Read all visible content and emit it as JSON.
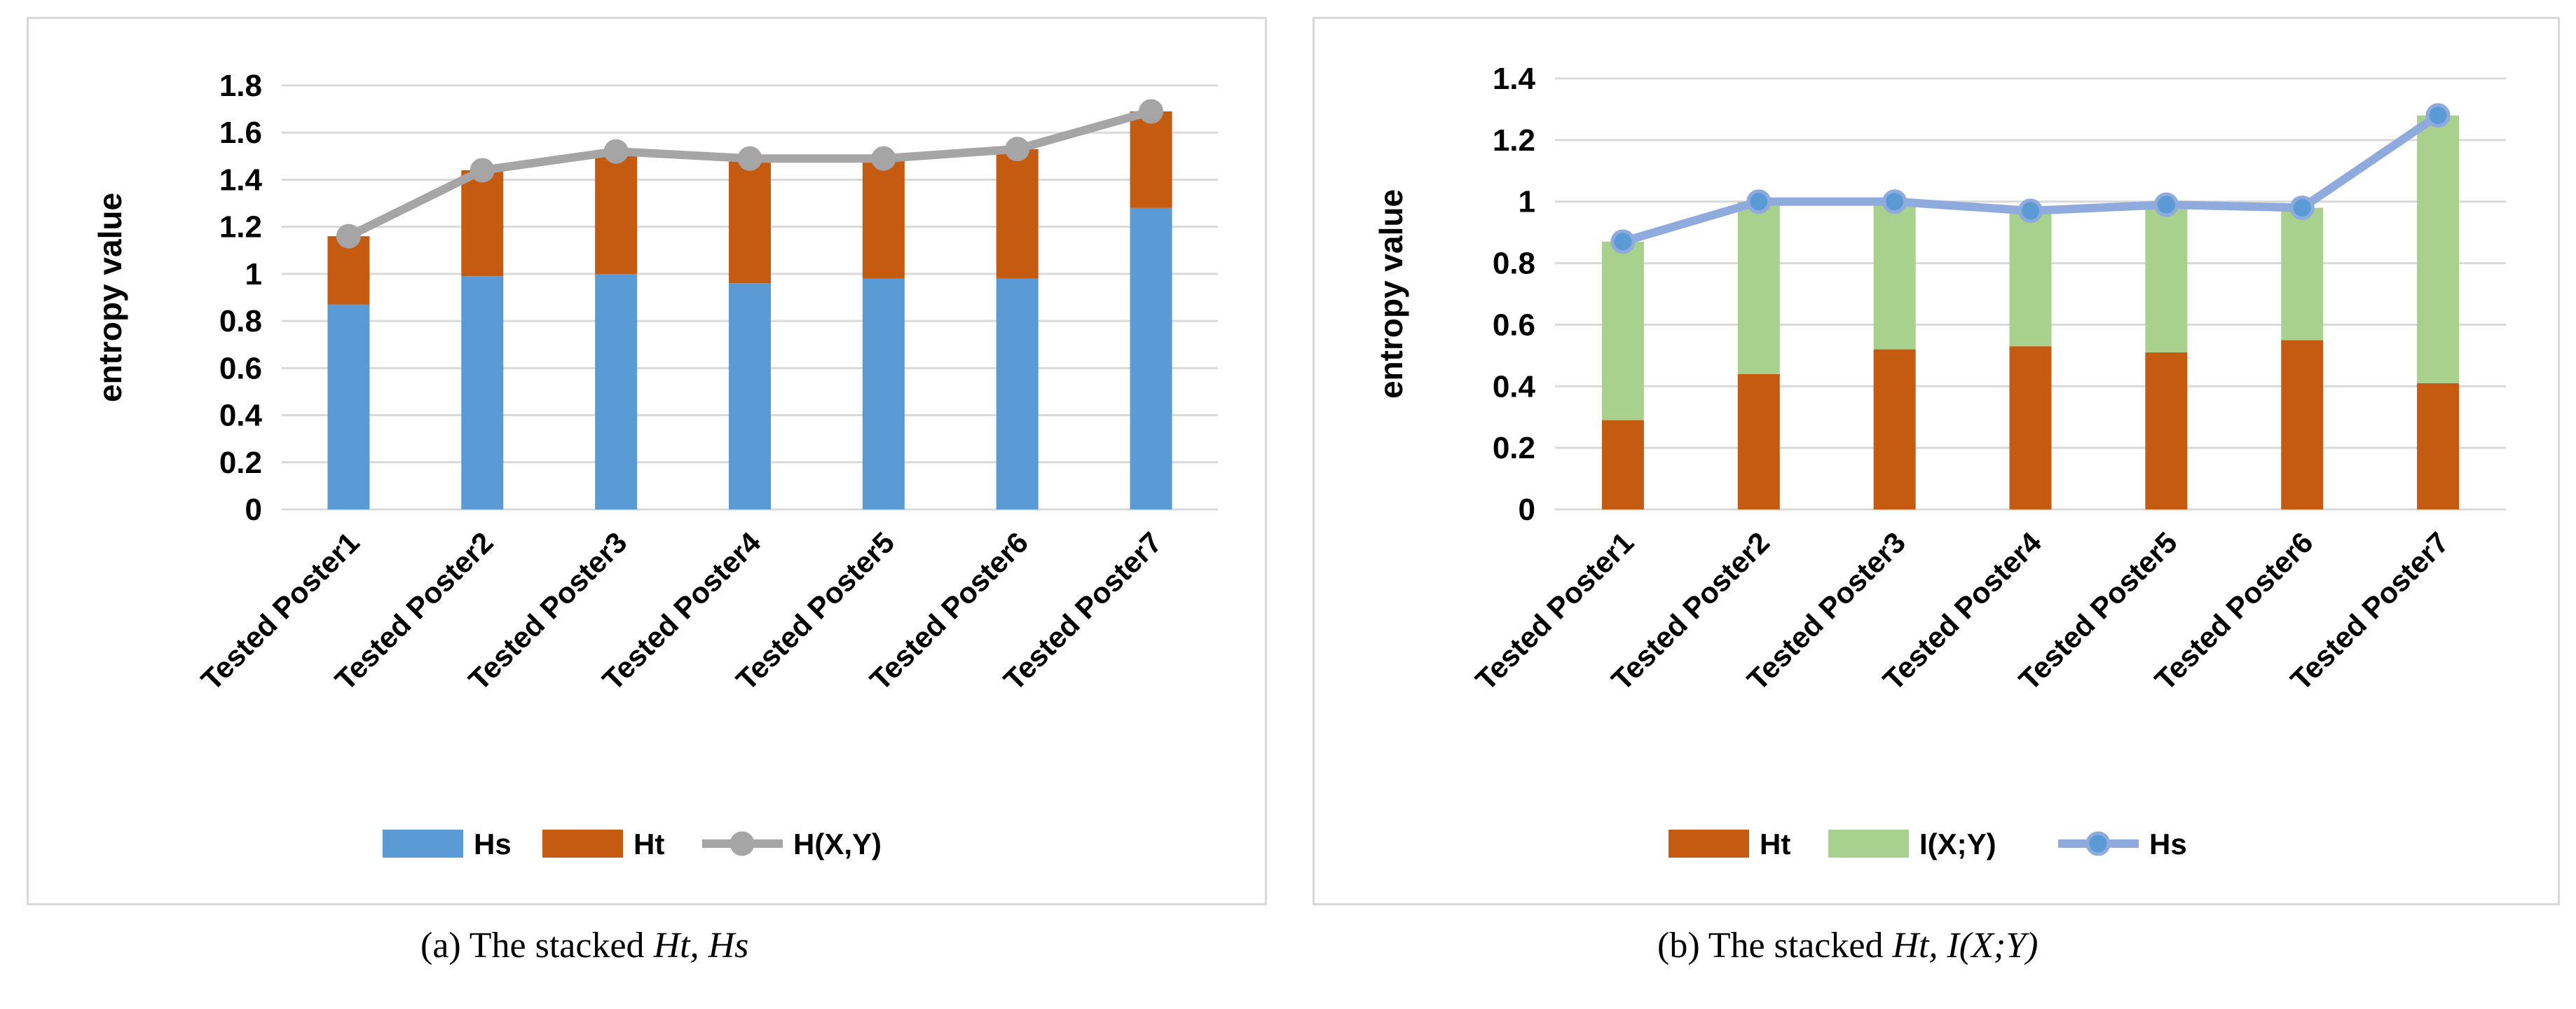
{
  "chart_data": [
    {
      "type": "bar",
      "stacked": true,
      "categories": [
        "Tested Poster1",
        "Tested Poster2",
        "Tested Poster3",
        "Tested Poster4",
        "Tested Poster5",
        "Tested Poster6",
        "Tested Poster7"
      ],
      "series": [
        {
          "name": "Hs",
          "kind": "bar",
          "color": "#5b9bd5",
          "values": [
            0.87,
            0.99,
            1.0,
            0.96,
            0.98,
            0.98,
            1.28
          ]
        },
        {
          "name": "Ht",
          "kind": "bar",
          "color": "#c55a11",
          "values": [
            0.29,
            0.45,
            0.52,
            0.53,
            0.51,
            0.55,
            0.41
          ]
        },
        {
          "name": "H(X,Y)",
          "kind": "line",
          "color": "#a5a5a5",
          "values": [
            1.16,
            1.44,
            1.52,
            1.49,
            1.49,
            1.53,
            1.69
          ]
        }
      ],
      "yticks": [
        "0",
        "0.2",
        "0.4",
        "0.6",
        "0.8",
        "1",
        "1.2",
        "1.4",
        "1.6",
        "1.8"
      ],
      "ylim": [
        0,
        1.8
      ],
      "ylabel": "entropy  value",
      "xlabel": "",
      "legend": "bottom",
      "grid": true
    },
    {
      "type": "bar",
      "stacked": true,
      "categories": [
        "Tested Poster1",
        "Tested Poster2",
        "Tested Poster3",
        "Tested Poster4",
        "Tested Poster5",
        "Tested Poster6",
        "Tested Poster7"
      ],
      "series": [
        {
          "name": "Ht",
          "kind": "bar",
          "color": "#c55a11",
          "values": [
            0.29,
            0.44,
            0.52,
            0.53,
            0.51,
            0.55,
            0.41
          ]
        },
        {
          "name": "I(X;Y)",
          "kind": "bar",
          "color": "#a9d18e",
          "values": [
            0.58,
            0.56,
            0.48,
            0.44,
            0.48,
            0.43,
            0.87
          ]
        },
        {
          "name": "Hs",
          "kind": "line",
          "color": "#8faadc",
          "marker": "#5b9bd5",
          "values": [
            0.87,
            1.0,
            1.0,
            0.97,
            0.99,
            0.98,
            1.28
          ]
        }
      ],
      "yticks": [
        "0",
        "0.2",
        "0.4",
        "0.6",
        "0.8",
        "1",
        "1.2",
        "1.4"
      ],
      "ylim": [
        0,
        1.4
      ],
      "ylabel": "entropy  value",
      "xlabel": "",
      "legend": "bottom",
      "grid": true
    }
  ],
  "captions": [
    {
      "label": "(a)",
      "text": "The stacked",
      "math": "Ht, Hs"
    },
    {
      "label": "(b)",
      "text": "The stacked",
      "math": "Ht, I(X;Y)"
    }
  ]
}
